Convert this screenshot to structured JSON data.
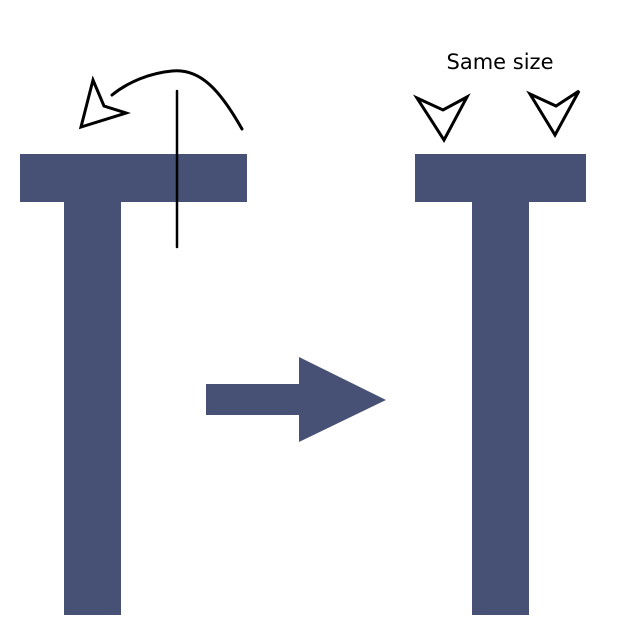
{
  "caption": "Same size",
  "colors": {
    "shape_fill": "#475075",
    "stroke": "#000000",
    "background": "#ffffff"
  },
  "icons": {
    "left_t": "t-shape-icon",
    "curved_arrow": "curved-arrow-icon",
    "cut_line": "vertical-line-icon",
    "transform_arrow": "right-arrow-icon",
    "right_t": "t-shape-icon",
    "markers": "arrowhead-marker-icon"
  }
}
